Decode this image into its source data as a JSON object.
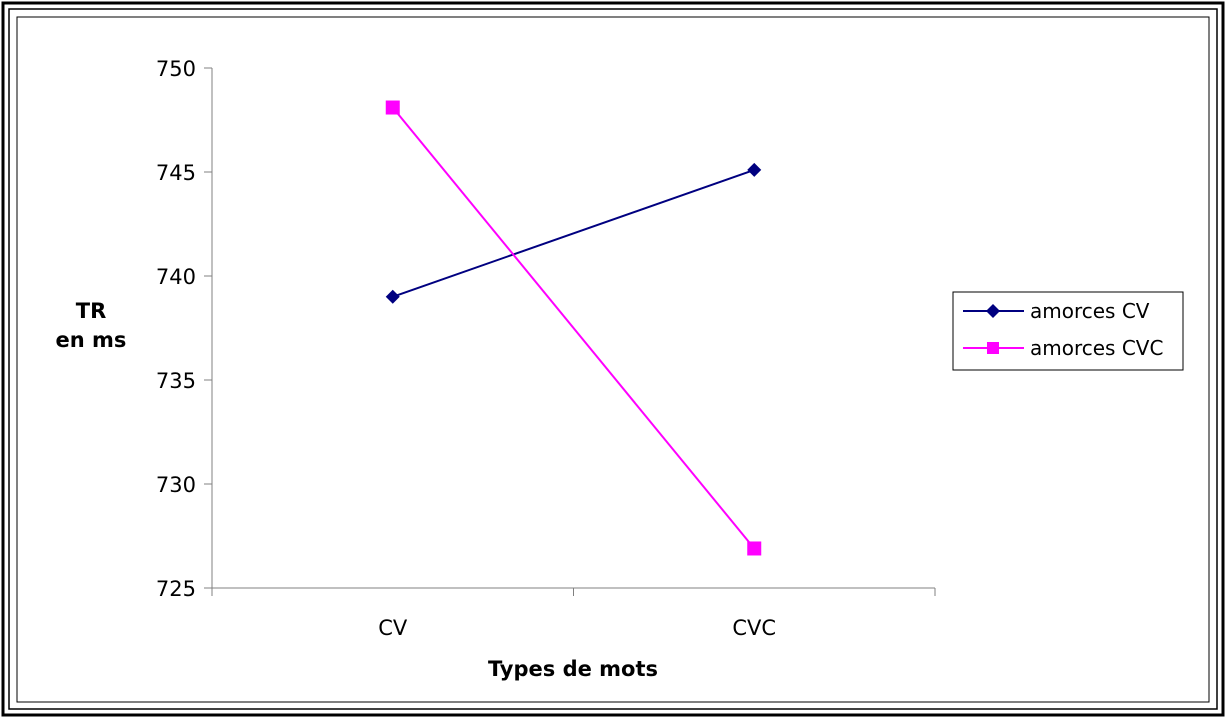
{
  "chart_data": {
    "type": "line",
    "title": "",
    "xlabel": "Types de mots",
    "ylabel_lines": [
      "TR",
      "en ms"
    ],
    "categories": [
      "CV",
      "CVC"
    ],
    "ylim": [
      725,
      750
    ],
    "yticks": [
      725,
      730,
      735,
      740,
      745,
      750
    ],
    "ytick_labels": [
      "725",
      "730",
      "735",
      "740",
      "745",
      "750"
    ],
    "grid": false,
    "legend_position": "right",
    "series": [
      {
        "name": "amorces CV",
        "values": [
          739.0,
          745.1
        ],
        "color": "#000080",
        "marker": "diamond"
      },
      {
        "name": "amorces CVC",
        "values": [
          748.1,
          726.9
        ],
        "color": "#FF00FF",
        "marker": "square"
      }
    ]
  }
}
